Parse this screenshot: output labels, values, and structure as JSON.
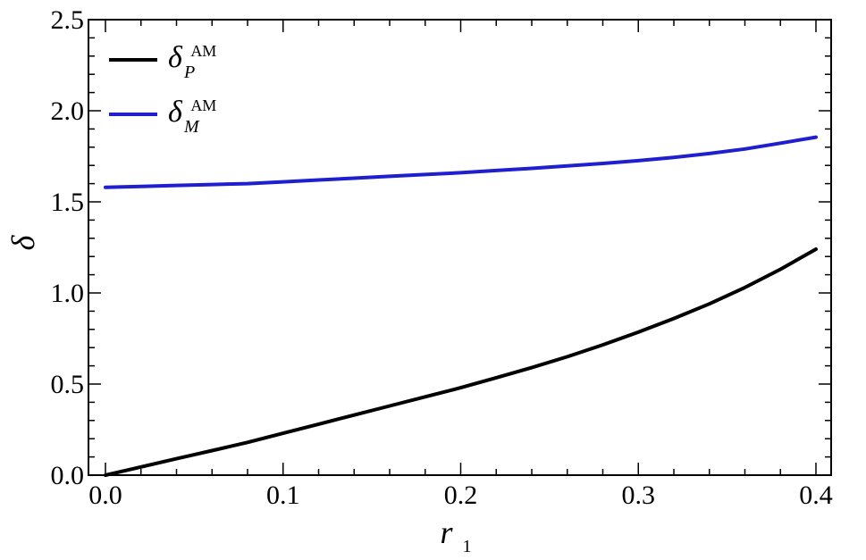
{
  "chart_data": {
    "type": "line",
    "title": "",
    "xlabel": {
      "main": "r",
      "sub": "1"
    },
    "ylabel": "δ",
    "xlim": [
      0.0,
      0.4
    ],
    "ylim": [
      0.0,
      2.5
    ],
    "x_ticks": [
      0.0,
      0.1,
      0.2,
      0.3,
      0.4
    ],
    "x_tick_labels": [
      "0.0",
      "0.1",
      "0.2",
      "0.3",
      "0.4"
    ],
    "y_ticks": [
      0.0,
      0.5,
      1.0,
      1.5,
      2.0,
      2.5
    ],
    "y_tick_labels": [
      "0.0",
      "0.5",
      "1.0",
      "1.5",
      "2.0",
      "2.5"
    ],
    "grid": false,
    "legend_position": "top-left",
    "x": [
      0.0,
      0.02,
      0.04,
      0.06,
      0.08,
      0.1,
      0.12,
      0.14,
      0.16,
      0.18,
      0.2,
      0.22,
      0.24,
      0.26,
      0.28,
      0.3,
      0.32,
      0.34,
      0.36,
      0.38,
      0.4
    ],
    "series": [
      {
        "legend": {
          "base": "δ",
          "sub": "P",
          "sup": "AM"
        },
        "color": "#000000",
        "values": [
          0.0,
          0.045,
          0.09,
          0.135,
          0.18,
          0.23,
          0.28,
          0.33,
          0.38,
          0.43,
          0.48,
          0.535,
          0.59,
          0.65,
          0.715,
          0.785,
          0.86,
          0.94,
          1.03,
          1.13,
          1.24
        ]
      },
      {
        "legend": {
          "base": "δ",
          "sub": "M",
          "sup": "AM"
        },
        "color": "#1f1fcf",
        "values": [
          1.58,
          1.585,
          1.59,
          1.595,
          1.6,
          1.61,
          1.62,
          1.63,
          1.64,
          1.65,
          1.66,
          1.672,
          1.684,
          1.697,
          1.711,
          1.726,
          1.744,
          1.765,
          1.79,
          1.822,
          1.855
        ]
      }
    ]
  }
}
